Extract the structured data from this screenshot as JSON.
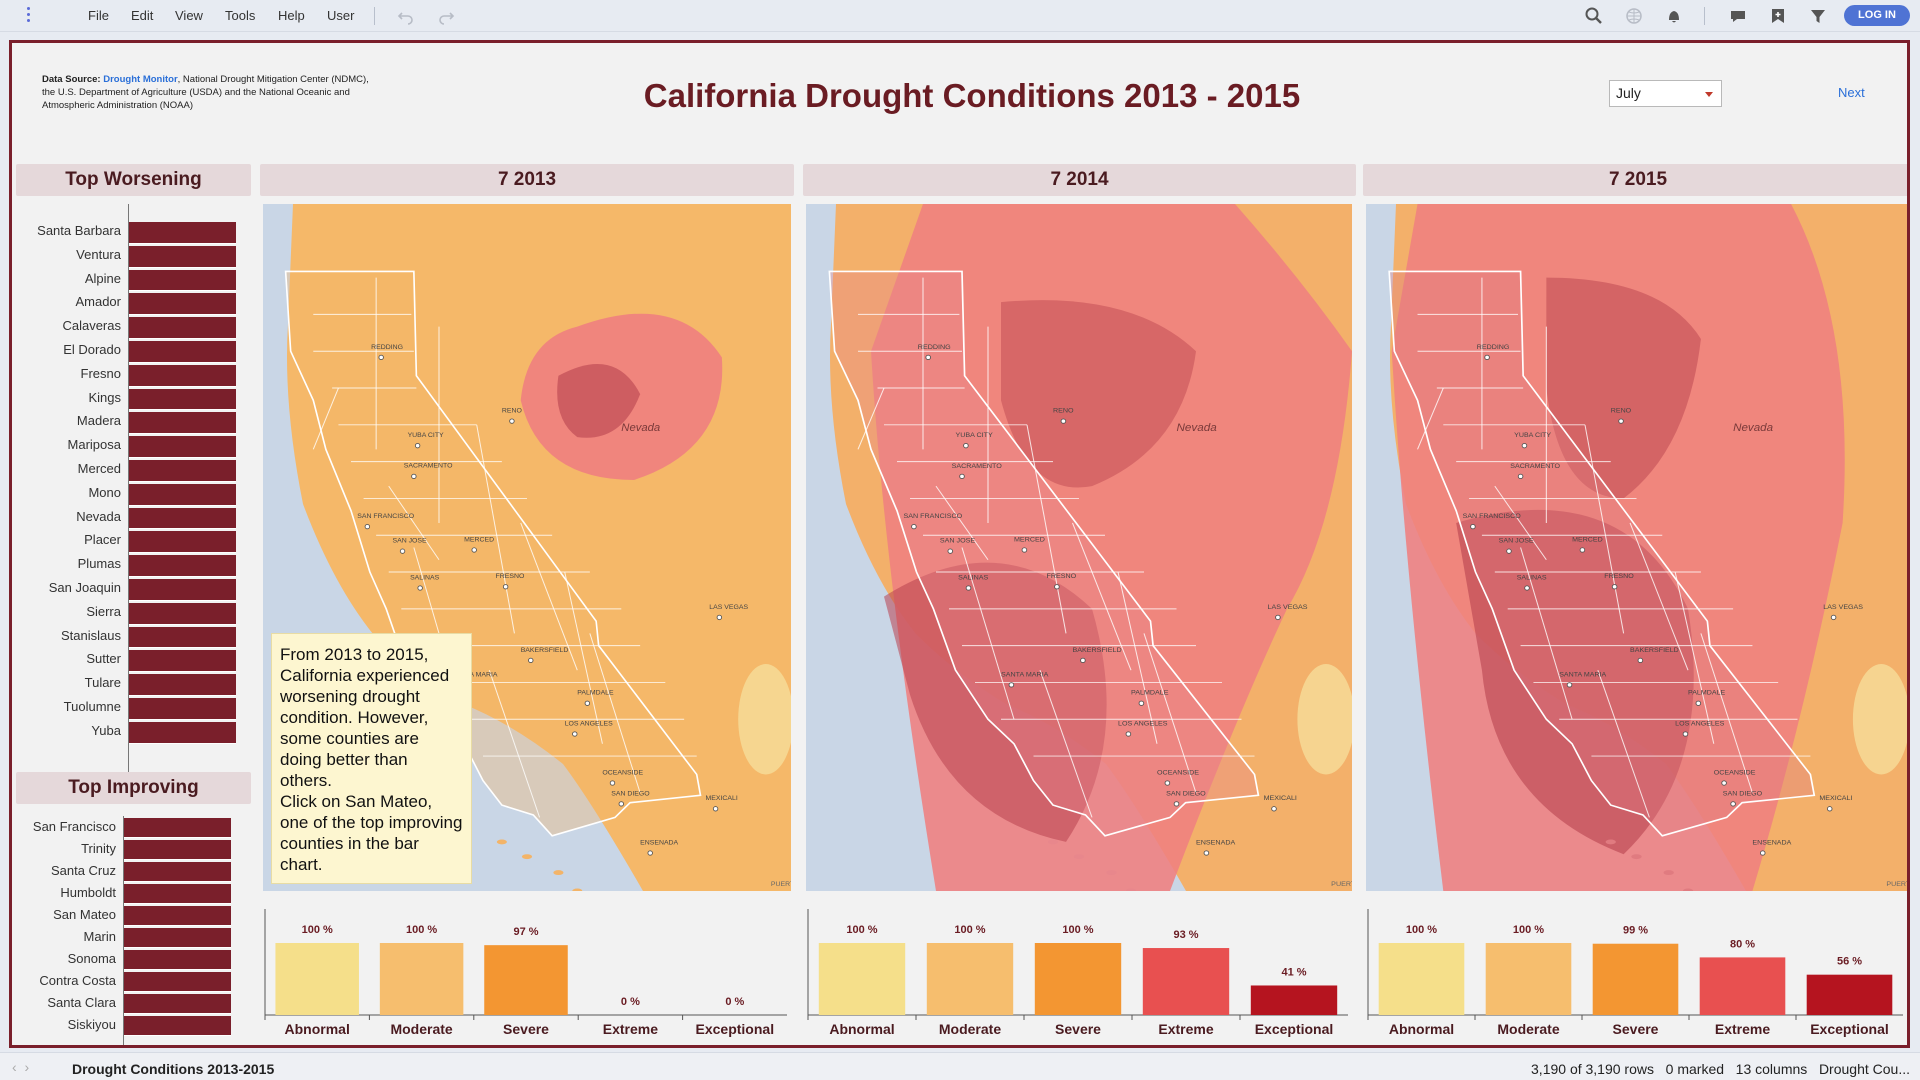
{
  "app": {
    "menu": [
      "File",
      "Edit",
      "View",
      "Tools",
      "Help",
      "User"
    ],
    "login_label": "LOG IN",
    "icons": [
      "menu-dots-icon",
      "undo-icon",
      "redo-icon",
      "search-icon",
      "globe-icon",
      "bell-icon",
      "comment-icon",
      "bookmark-icon",
      "filter-icon"
    ]
  },
  "header": {
    "data_source_label": "Data Source:",
    "data_source_link": "Drought Monitor",
    "data_source_text": ", National Drought Mitigation Center (NDMC), the U.S. Department of Agriculture (USDA) and the National Oceanic and Atmospheric Administration (NOAA)",
    "title": "California Drought Conditions 2013 - 2015",
    "month": "July",
    "next_label": "Next"
  },
  "worsening": {
    "title": "Top Worsening",
    "counties": [
      "Santa Barbara",
      "Ventura",
      "Alpine",
      "Amador",
      "Calaveras",
      "El Dorado",
      "Fresno",
      "Kings",
      "Madera",
      "Mariposa",
      "Merced",
      "Mono",
      "Nevada",
      "Placer",
      "Plumas",
      "San Joaquin",
      "Sierra",
      "Stanislaus",
      "Sutter",
      "Tulare",
      "Tuolumne",
      "Yuba"
    ]
  },
  "improving": {
    "title": "Top Improving",
    "counties": [
      "San Francisco",
      "Trinity",
      "Santa Cruz",
      "Humboldt",
      "San Mateo",
      "Marin",
      "Sonoma",
      "Contra Costa",
      "Santa Clara",
      "Siskiyou"
    ]
  },
  "maps": [
    {
      "title": "7 2013",
      "labels": {
        "redding": "REDDING",
        "reno": "RENO",
        "nevada": "Nevada",
        "yuba": "YUBA CITY",
        "sac": "SACRAMENTO",
        "sf": "SAN FRANCISCO",
        "sj": "SAN JOSE",
        "merced": "MERCED",
        "fresno": "FRESNO",
        "salinas": "SALINAS",
        "lasvegas": "LAS VEGAS",
        "bakersfield": "BAKERSFIELD",
        "santamaria": "SANTA MARIA",
        "palmdale": "PALMDALE",
        "la": "LOS ANGELES",
        "oceanside": "OCEANSIDE",
        "sandiego": "SAN DIEGO",
        "mexicali": "MEXICALI",
        "ensenada": "ENSENADA",
        "puerto": "PUERTO"
      }
    },
    {
      "title": "7 2014",
      "labels": {
        "redding": "REDDING",
        "reno": "RENO",
        "nevada": "Nevada",
        "yuba": "YUBA CITY",
        "sac": "SACRAMENTO",
        "sf": "SAN FRANCISCO",
        "sj": "SAN JOSE",
        "merced": "MERCED",
        "fresno": "FRESNO",
        "salinas": "SALINAS",
        "lasvegas": "LAS VEGAS",
        "bakersfield": "BAKERSFIELD",
        "santamaria": "SANTA MARIA",
        "palmdale": "PALMDALE",
        "la": "LOS ANGELES",
        "oceanside": "OCEANSIDE",
        "sandiego": "SAN DIEGO",
        "mexicali": "MEXICALI",
        "ensenada": "ENSENADA",
        "puerto": "PUERTO"
      }
    },
    {
      "title": "7 2015",
      "labels": {
        "redding": "REDDING",
        "reno": "RENO",
        "nevada": "Nevada",
        "yuba": "YUBA CITY",
        "sac": "SACRAMENTO",
        "sf": "SAN FRANCISCO",
        "sj": "SAN JOSE",
        "merced": "MERCED",
        "fresno": "FRESNO",
        "salinas": "SALINAS",
        "lasvegas": "LAS VEGAS",
        "bakersfield": "BAKERSFIELD",
        "santamaria": "SANTA MARIA",
        "palmdale": "PALMDALE",
        "la": "LOS ANGELES",
        "oceanside": "OCEANSIDE",
        "sandiego": "SAN DIEGO",
        "mexicali": "MEXICALI",
        "ensenada": "ENSENADA",
        "puerto": "PUERTO"
      }
    }
  ],
  "callout": {
    "text": "From 2013 to 2015, California experienced worsening drought condition. However, some counties are doing better than others.\nClick on San Mateo, one of the top improving counties in the bar chart."
  },
  "chart_data": [
    {
      "type": "bar",
      "categories": [
        "Abnormal",
        "Moderate",
        "Severe",
        "Extreme",
        "Exceptional"
      ],
      "values": [
        100,
        100,
        97,
        0,
        0
      ],
      "value_labels": [
        "100 %",
        "100 %",
        "97 %",
        "0 %",
        "0 %"
      ],
      "ylim": [
        0,
        100
      ]
    },
    {
      "type": "bar",
      "categories": [
        "Abnormal",
        "Moderate",
        "Severe",
        "Extreme",
        "Exceptional"
      ],
      "values": [
        100,
        100,
        100,
        93,
        41
      ],
      "value_labels": [
        "100 %",
        "100 %",
        "100 %",
        "93 %",
        "41 %"
      ],
      "ylim": [
        0,
        100
      ]
    },
    {
      "type": "bar",
      "categories": [
        "Abnormal",
        "Moderate",
        "Severe",
        "Extreme",
        "Exceptional"
      ],
      "values": [
        100,
        100,
        99,
        80,
        56
      ],
      "value_labels": [
        "100 %",
        "100 %",
        "99 %",
        "80 %",
        "56 %"
      ],
      "ylim": [
        0,
        100
      ]
    }
  ],
  "colors": {
    "abnormal": "#f5df8a",
    "moderate": "#f6be6e",
    "severe": "#f39632",
    "extreme": "#e85050",
    "exceptional": "#b5141f",
    "brand": "#7a1f2b",
    "title": "#6a1c23",
    "link": "#2a6fd8"
  },
  "statusbar": {
    "doc_name": "Drought Conditions 2013-2015",
    "info": "3,190 of 3,190 rows   0 marked   13 columns   Drought Cou..."
  }
}
